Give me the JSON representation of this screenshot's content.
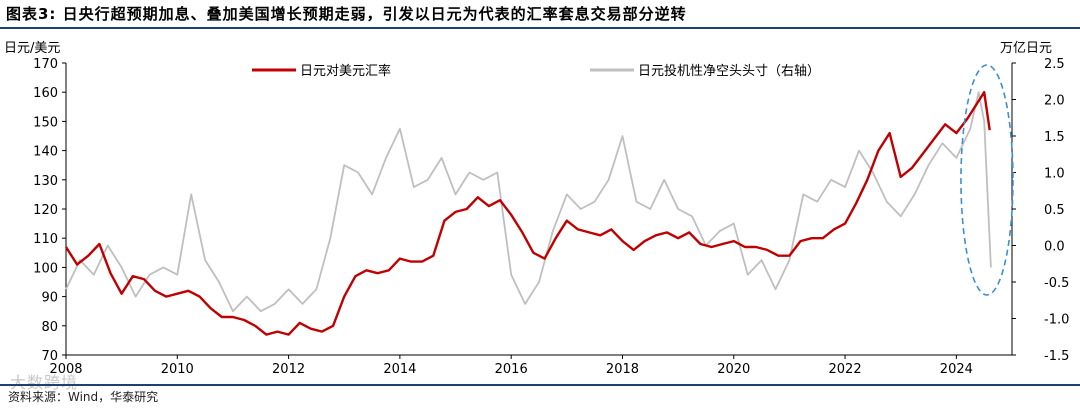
{
  "title": "图表3:  日央行超预期加息、叠加美国增长预期走弱，引发以日元为代表的汇率套息交易部分逆转",
  "source": "资料来源：Wind，华泰研究",
  "watermark": "大数跨境",
  "colors": {
    "usdjpy": "#c00000",
    "positions": "#bfbfbf",
    "rule": "#1f3f73",
    "ellipse": "#3b8fd0"
  },
  "chart_data": {
    "type": "line",
    "title": "",
    "xlabel": "",
    "ylabel": "日元/美元",
    "y2label": "万亿日元",
    "xlim": [
      2008,
      2025
    ],
    "ylim": [
      70,
      170
    ],
    "y2lim": [
      -1.5,
      2.5
    ],
    "x_ticks": [
      "2008",
      "2010",
      "2012",
      "2014",
      "2016",
      "2018",
      "2020",
      "2022",
      "2024"
    ],
    "y_ticks": [
      70,
      80,
      90,
      100,
      110,
      120,
      130,
      140,
      150,
      160,
      170
    ],
    "y2_ticks": [
      -1.5,
      -1.0,
      -0.5,
      0.0,
      0.5,
      1.0,
      1.5,
      2.0,
      2.5
    ],
    "legend_position": "top",
    "annotation": "dashed ellipse highlighting 2024 reversal",
    "series": [
      {
        "name": "日元对美元汇率",
        "axis": "left",
        "x": [
          2008.0,
          2008.2,
          2008.4,
          2008.6,
          2008.8,
          2009.0,
          2009.2,
          2009.4,
          2009.6,
          2009.8,
          2010.0,
          2010.2,
          2010.4,
          2010.6,
          2010.8,
          2011.0,
          2011.2,
          2011.4,
          2011.6,
          2011.8,
          2012.0,
          2012.2,
          2012.4,
          2012.6,
          2012.8,
          2013.0,
          2013.2,
          2013.4,
          2013.6,
          2013.8,
          2014.0,
          2014.2,
          2014.4,
          2014.6,
          2014.8,
          2015.0,
          2015.2,
          2015.4,
          2015.6,
          2015.8,
          2016.0,
          2016.2,
          2016.4,
          2016.6,
          2016.8,
          2017.0,
          2017.2,
          2017.4,
          2017.6,
          2017.8,
          2018.0,
          2018.2,
          2018.4,
          2018.6,
          2018.8,
          2019.0,
          2019.2,
          2019.4,
          2019.6,
          2019.8,
          2020.0,
          2020.2,
          2020.4,
          2020.6,
          2020.8,
          2021.0,
          2021.2,
          2021.4,
          2021.6,
          2021.8,
          2022.0,
          2022.2,
          2022.4,
          2022.6,
          2022.8,
          2023.0,
          2023.2,
          2023.4,
          2023.6,
          2023.8,
          2024.0,
          2024.2,
          2024.4,
          2024.5,
          2024.6
        ],
        "values": [
          107,
          101,
          104,
          108,
          98,
          91,
          97,
          96,
          92,
          90,
          91,
          92,
          90,
          86,
          83,
          83,
          82,
          80,
          77,
          78,
          77,
          81,
          79,
          78,
          80,
          90,
          97,
          99,
          98,
          99,
          103,
          102,
          102,
          104,
          116,
          119,
          120,
          124,
          121,
          123,
          118,
          112,
          105,
          103,
          110,
          116,
          113,
          112,
          111,
          113,
          109,
          106,
          109,
          111,
          112,
          110,
          112,
          108,
          107,
          108,
          109,
          107,
          107,
          106,
          104,
          104,
          109,
          110,
          110,
          113,
          115,
          122,
          130,
          140,
          146,
          131,
          134,
          139,
          144,
          149,
          146,
          151,
          157,
          160,
          147
        ]
      },
      {
        "name": "日元投机性净空头头寸（右轴）",
        "axis": "right",
        "x": [
          2008.0,
          2008.25,
          2008.5,
          2008.75,
          2009.0,
          2009.25,
          2009.5,
          2009.75,
          2010.0,
          2010.25,
          2010.5,
          2010.75,
          2011.0,
          2011.25,
          2011.5,
          2011.75,
          2012.0,
          2012.25,
          2012.5,
          2012.75,
          2013.0,
          2013.25,
          2013.5,
          2013.75,
          2014.0,
          2014.25,
          2014.5,
          2014.75,
          2015.0,
          2015.25,
          2015.5,
          2015.75,
          2016.0,
          2016.25,
          2016.5,
          2016.75,
          2017.0,
          2017.25,
          2017.5,
          2017.75,
          2018.0,
          2018.25,
          2018.5,
          2018.75,
          2019.0,
          2019.25,
          2019.5,
          2019.75,
          2020.0,
          2020.25,
          2020.5,
          2020.75,
          2021.0,
          2021.25,
          2021.5,
          2021.75,
          2022.0,
          2022.25,
          2022.5,
          2022.75,
          2023.0,
          2023.25,
          2023.5,
          2023.75,
          2024.0,
          2024.25,
          2024.4,
          2024.5,
          2024.62
        ],
        "values": [
          -0.6,
          -0.2,
          -0.4,
          0.0,
          -0.3,
          -0.7,
          -0.4,
          -0.3,
          -0.4,
          0.7,
          -0.2,
          -0.5,
          -0.9,
          -0.7,
          -0.9,
          -0.8,
          -0.6,
          -0.8,
          -0.6,
          0.1,
          1.1,
          1.0,
          0.7,
          1.2,
          1.6,
          0.8,
          0.9,
          1.2,
          0.7,
          1.0,
          0.9,
          1.0,
          -0.4,
          -0.8,
          -0.5,
          0.2,
          0.7,
          0.5,
          0.6,
          0.9,
          1.5,
          0.6,
          0.5,
          0.9,
          0.5,
          0.4,
          0.0,
          0.2,
          0.3,
          -0.4,
          -0.2,
          -0.6,
          -0.2,
          0.7,
          0.6,
          0.9,
          0.8,
          1.3,
          1.0,
          0.6,
          0.4,
          0.7,
          1.1,
          1.4,
          1.2,
          1.6,
          2.1,
          1.7,
          -0.3
        ]
      }
    ]
  }
}
